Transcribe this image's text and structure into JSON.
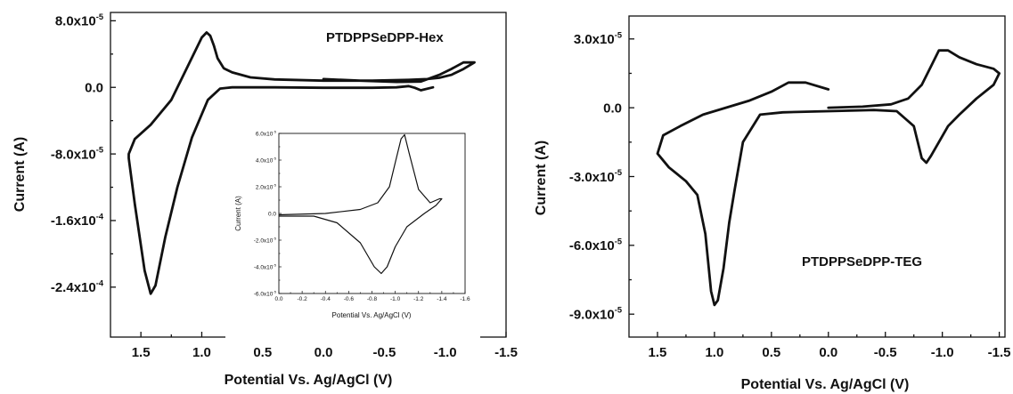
{
  "chart_data": [
    {
      "type": "line",
      "title": "PTDPPSeDPP-Hex",
      "xlabel": "Potential Vs. Ag/AgCl (V)",
      "ylabel": "Current (A)",
      "xlim": [
        1.75,
        -1.5
      ],
      "ylim": [
        -0.0003,
        9e-05
      ],
      "xticks": [
        "1.5",
        "1.0",
        "0.5",
        "0.0",
        "-0.5",
        "-1.0",
        "-1.5"
      ],
      "xtick_values": [
        1.5,
        1.0,
        0.5,
        0.0,
        -0.5,
        -1.0,
        -1.5
      ],
      "yticks_sup": [
        {
          "v": 8e-05,
          "base": "8.0x10",
          "exp": "-5"
        },
        {
          "v": 0.0,
          "base": "0.0",
          "exp": ""
        },
        {
          "v": -8e-05,
          "base": "-8.0x10",
          "exp": "-5"
        },
        {
          "v": -0.00016,
          "base": "-1.6x10",
          "exp": "-4"
        },
        {
          "v": -0.00024,
          "base": "-2.4x10",
          "exp": "-4"
        }
      ],
      "series": [
        {
          "x": [
            0.0,
            -0.3,
            -0.6,
            -0.8,
            -0.95,
            -1.05,
            -1.15,
            -1.24,
            -1.24,
            -1.15,
            -1.05,
            -0.95,
            -0.85,
            -0.7,
            -0.4,
            0.0,
            0.4,
            0.6,
            0.75,
            0.82,
            0.87,
            0.9,
            0.93,
            0.96,
            1.0,
            1.1,
            1.25,
            1.42,
            1.55,
            1.6,
            1.6,
            1.55,
            1.47,
            1.42,
            1.38,
            1.3,
            1.2,
            1.08,
            0.95,
            0.85,
            0.75,
            0.6,
            0.4,
            0.0,
            -0.4,
            -0.6,
            -0.7,
            -0.75,
            -0.8,
            -0.9
          ],
          "y": [
            1e-05,
            8e-06,
            6.5e-06,
            7e-06,
            1.5e-05,
            2.2e-05,
            3e-05,
            3e-05,
            3e-05,
            2.2e-05,
            1.5e-05,
            1.15e-05,
            1e-05,
            9e-06,
            8e-06,
            8e-06,
            9.5e-06,
            1.2e-05,
            1.8e-05,
            2.3e-05,
            3.5e-05,
            5e-05,
            6.2e-05,
            6.6e-05,
            6e-05,
            3e-05,
            -1.5e-05,
            -4.5e-05,
            -6.2e-05,
            -8e-05,
            -8.5e-05,
            -0.00014,
            -0.00022,
            -0.000248,
            -0.000238,
            -0.00018,
            -0.00012,
            -6e-05,
            -1.5e-05,
            -1.5e-06,
            0.0,
            0.0,
            0.0,
            -5e-07,
            -5e-07,
            0.0,
            1.5e-06,
            -5e-07,
            -3.5e-06,
            0.0
          ]
        }
      ],
      "inset": {
        "type": "line",
        "xlabel": "Potential Vs. Ag/AgCl (V)",
        "ylabel": "Current (A)",
        "xlim": [
          0.0,
          -1.6
        ],
        "ylim": [
          -6e-05,
          6e-05
        ],
        "xticks": [
          "0.0",
          "-0.2",
          "-0.4",
          "-0.6",
          "-0.8",
          "-1.0",
          "-1.2",
          "-1.4",
          "-1.6"
        ],
        "xtick_values": [
          0.0,
          -0.2,
          -0.4,
          -0.6,
          -0.8,
          -1.0,
          -1.2,
          -1.4,
          -1.6
        ],
        "yticks_sup": [
          {
            "v": 6e-05,
            "base": "6.0x10",
            "exp": "-5"
          },
          {
            "v": 4e-05,
            "base": "4.0x10",
            "exp": "-5"
          },
          {
            "v": 2e-05,
            "base": "2.0x10",
            "exp": "-5"
          },
          {
            "v": 0.0,
            "base": "0.0",
            "exp": ""
          },
          {
            "v": -2e-05,
            "base": "-2.0x10",
            "exp": "-5"
          },
          {
            "v": -4e-05,
            "base": "-4.0x10",
            "exp": "-5"
          },
          {
            "v": -6e-05,
            "base": "-6.0x10",
            "exp": "-5"
          }
        ],
        "series": [
          {
            "x": [
              0.0,
              -0.4,
              -0.7,
              -0.85,
              -0.95,
              -1.0,
              -1.05,
              -1.08,
              -1.12,
              -1.2,
              -1.3,
              -1.38,
              -1.4,
              -1.35,
              -1.25,
              -1.1,
              -1.0,
              -0.93,
              -0.88,
              -0.82,
              -0.7,
              -0.5,
              -0.3,
              0.0
            ],
            "y": [
              -1e-06,
              0.0,
              3e-06,
              8e-06,
              2e-05,
              3.8e-05,
              5.6e-05,
              5.9e-05,
              4.5e-05,
              1.8e-05,
              8e-06,
              1.1e-05,
              1.1e-05,
              6e-06,
              0.0,
              -1e-05,
              -2.5e-05,
              -4e-05,
              -4.5e-05,
              -4e-05,
              -2.2e-05,
              -7e-06,
              -2e-06,
              -2e-06
            ]
          }
        ]
      }
    },
    {
      "type": "line",
      "title": "PTDPPSeDPP-TEG",
      "xlabel": "Potential Vs. Ag/AgCl (V)",
      "ylabel": "Current (A)",
      "xlim": [
        1.75,
        -1.55
      ],
      "ylim": [
        -0.0001,
        4e-05
      ],
      "xticks": [
        "1.5",
        "1.0",
        "0.5",
        "0.0",
        "-0.5",
        "-1.0",
        "-1.5"
      ],
      "xtick_values": [
        1.5,
        1.0,
        0.5,
        0.0,
        -0.5,
        -1.0,
        -1.5
      ],
      "yticks_sup": [
        {
          "v": 3e-05,
          "base": "3.0x10",
          "exp": "-5"
        },
        {
          "v": 0.0,
          "base": "0.0",
          "exp": ""
        },
        {
          "v": -3e-05,
          "base": "-3.0x10",
          "exp": "-5"
        },
        {
          "v": -6e-05,
          "base": "-6.0x10",
          "exp": "-5"
        },
        {
          "v": -9e-05,
          "base": "-9.0x10",
          "exp": "-5"
        }
      ],
      "series": [
        {
          "x": [
            0.0,
            -0.3,
            -0.55,
            -0.7,
            -0.82,
            -0.9,
            -0.97,
            -1.05,
            -1.15,
            -1.3,
            -1.45,
            -1.5,
            -1.45,
            -1.3,
            -1.15,
            -1.05,
            -0.97,
            -0.9,
            -0.86,
            -0.82,
            -0.75,
            -0.6,
            -0.4,
            0.0,
            0.4,
            0.6,
            0.75,
            0.82,
            0.87,
            0.92,
            0.97,
            1.0,
            1.03,
            1.08,
            1.15,
            1.25,
            1.4,
            1.5,
            1.45,
            1.3,
            1.1,
            0.9,
            0.7,
            0.5,
            0.35,
            0.2,
            0.0
          ],
          "y": [
            0.0,
            5e-07,
            1.5e-06,
            4e-06,
            1e-05,
            1.8e-05,
            2.5e-05,
            2.5e-05,
            2.2e-05,
            1.9e-05,
            1.7e-05,
            1.5e-05,
            1e-05,
            4e-06,
            -3e-06,
            -8e-06,
            -1.5e-05,
            -2.1e-05,
            -2.4e-05,
            -2.2e-05,
            -8e-06,
            -1.5e-06,
            -1e-06,
            -1.5e-06,
            -2e-06,
            -3e-06,
            -1.5e-05,
            -3.5e-05,
            -5e-05,
            -7e-05,
            -8.4e-05,
            -8.6e-05,
            -8e-05,
            -5.5e-05,
            -3.8e-05,
            -3.2e-05,
            -2.6e-05,
            -2e-05,
            -1.2e-05,
            -8e-06,
            -3e-06,
            0.0,
            3e-06,
            7e-06,
            1.1e-05,
            1.1e-05,
            8e-06
          ]
        }
      ]
    }
  ]
}
